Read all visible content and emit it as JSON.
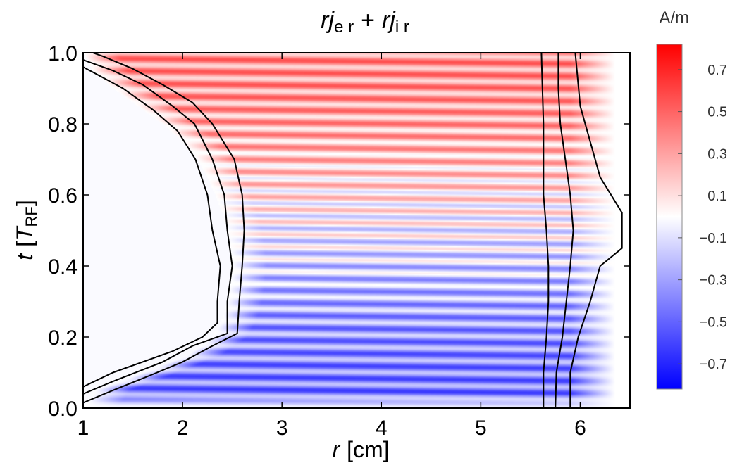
{
  "chart_data": {
    "type": "heatmap",
    "title": {
      "term1_base": "rj",
      "term1_sub": "e r",
      "operator": "+",
      "term2_base": "rj",
      "term2_sub": "i r"
    },
    "xlabel": {
      "symbol": "r",
      "unit": "[cm]"
    },
    "ylabel": {
      "symbol": "t",
      "open": "[",
      "base": "T",
      "sub": "RF",
      "close": "]"
    },
    "xlim": [
      1,
      6.5
    ],
    "ylim": [
      0.0,
      1.0
    ],
    "x_ticks": [
      1,
      2,
      3,
      4,
      5,
      6
    ],
    "x_tick_labels": [
      "1",
      "2",
      "3",
      "4",
      "5",
      "6"
    ],
    "y_ticks": [
      0.0,
      0.2,
      0.4,
      0.6,
      0.8,
      1.0
    ],
    "y_tick_labels": [
      "0.0",
      "0.2",
      "0.4",
      "0.6",
      "0.8",
      "1.0"
    ],
    "colorbar": {
      "label": "A/m",
      "range": [
        -0.82,
        0.82
      ],
      "ticks": [
        0.7,
        0.5,
        0.3,
        0.1,
        -0.1,
        -0.3,
        -0.5,
        -0.7
      ],
      "tick_labels": [
        "0.7",
        "0.5",
        "0.3",
        "0.1",
        "−0.1",
        "−0.3",
        "−0.5",
        "−0.7"
      ],
      "colors": {
        "negative": "#0000ff",
        "zero": "#ffffff",
        "positive": "#ff0000"
      }
    },
    "field_description": {
      "inner_empty_boundary_r_vs_t": [
        [
          0.0,
          1.0
        ],
        [
          0.05,
          1.12
        ],
        [
          0.1,
          1.6
        ],
        [
          0.15,
          2.05
        ],
        [
          0.2,
          2.3
        ],
        [
          0.25,
          2.4
        ],
        [
          0.3,
          2.45
        ],
        [
          0.35,
          2.48
        ],
        [
          0.4,
          2.5
        ],
        [
          0.45,
          2.48
        ],
        [
          0.5,
          2.45
        ],
        [
          0.55,
          2.4
        ],
        [
          0.6,
          2.33
        ],
        [
          0.65,
          2.25
        ],
        [
          0.7,
          2.15
        ],
        [
          0.75,
          2.0
        ],
        [
          0.8,
          1.8
        ],
        [
          0.85,
          1.55
        ],
        [
          0.9,
          1.3
        ],
        [
          0.95,
          1.1
        ],
        [
          1.0,
          1.0
        ]
      ],
      "outer_fade_radius_cm": 5.9,
      "dominant_sign_early_phase": "negative",
      "dominant_sign_late_phase": "positive",
      "stripe_period_t": 0.035
    },
    "contours": [
      {
        "name": "inner-contour-1",
        "points": [
          [
            1.0,
            0.015
          ],
          [
            1.3,
            0.05
          ],
          [
            1.7,
            0.095
          ],
          [
            2.0,
            0.13
          ],
          [
            2.3,
            0.175
          ],
          [
            2.55,
            0.21
          ],
          [
            2.57,
            0.3
          ],
          [
            2.6,
            0.4
          ],
          [
            2.62,
            0.5
          ],
          [
            2.6,
            0.6
          ],
          [
            2.52,
            0.7
          ],
          [
            2.3,
            0.8
          ],
          [
            2.1,
            0.86
          ],
          [
            1.8,
            0.91
          ],
          [
            1.5,
            0.955
          ],
          [
            1.2,
            0.99
          ],
          [
            1.1,
            1.0
          ]
        ]
      },
      {
        "name": "inner-contour-2",
        "points": [
          [
            1.0,
            0.04
          ],
          [
            1.3,
            0.075
          ],
          [
            1.8,
            0.13
          ],
          [
            2.1,
            0.175
          ],
          [
            2.45,
            0.21
          ],
          [
            2.45,
            0.3
          ],
          [
            2.5,
            0.4
          ],
          [
            2.45,
            0.5
          ],
          [
            2.42,
            0.6
          ],
          [
            2.3,
            0.7
          ],
          [
            2.12,
            0.8
          ],
          [
            1.9,
            0.85
          ],
          [
            1.6,
            0.91
          ],
          [
            1.3,
            0.95
          ],
          [
            1.0,
            0.98
          ]
        ]
      },
      {
        "name": "inner-contour-3",
        "points": [
          [
            1.0,
            0.06
          ],
          [
            1.3,
            0.1
          ],
          [
            1.9,
            0.16
          ],
          [
            2.2,
            0.2
          ],
          [
            2.35,
            0.24
          ],
          [
            2.35,
            0.3
          ],
          [
            2.38,
            0.4
          ],
          [
            2.3,
            0.5
          ],
          [
            2.25,
            0.6
          ],
          [
            2.13,
            0.7
          ],
          [
            1.95,
            0.78
          ],
          [
            1.7,
            0.84
          ],
          [
            1.4,
            0.9
          ],
          [
            1.0,
            0.96
          ]
        ]
      },
      {
        "name": "outer-contour-1",
        "points": [
          [
            5.63,
            0.0
          ],
          [
            5.63,
            0.1
          ],
          [
            5.66,
            0.2
          ],
          [
            5.68,
            0.3
          ],
          [
            5.68,
            0.4
          ],
          [
            5.66,
            0.5
          ],
          [
            5.63,
            0.6
          ],
          [
            5.63,
            0.7
          ],
          [
            5.63,
            0.8
          ],
          [
            5.62,
            0.9
          ],
          [
            5.61,
            1.0
          ]
        ]
      },
      {
        "name": "outer-contour-2",
        "points": [
          [
            5.75,
            0.0
          ],
          [
            5.76,
            0.1
          ],
          [
            5.82,
            0.2
          ],
          [
            5.86,
            0.3
          ],
          [
            5.9,
            0.4
          ],
          [
            5.93,
            0.5
          ],
          [
            5.9,
            0.6
          ],
          [
            5.85,
            0.7
          ],
          [
            5.8,
            0.8
          ],
          [
            5.78,
            0.9
          ],
          [
            5.78,
            1.0
          ]
        ]
      },
      {
        "name": "outer-contour-3",
        "points": [
          [
            5.9,
            0.0
          ],
          [
            5.9,
            0.1
          ],
          [
            5.98,
            0.2
          ],
          [
            6.1,
            0.3
          ],
          [
            6.2,
            0.4
          ],
          [
            6.42,
            0.45
          ],
          [
            6.42,
            0.55
          ],
          [
            6.2,
            0.65
          ],
          [
            6.1,
            0.75
          ],
          [
            6.0,
            0.85
          ],
          [
            5.95,
            1.0
          ]
        ]
      }
    ]
  }
}
